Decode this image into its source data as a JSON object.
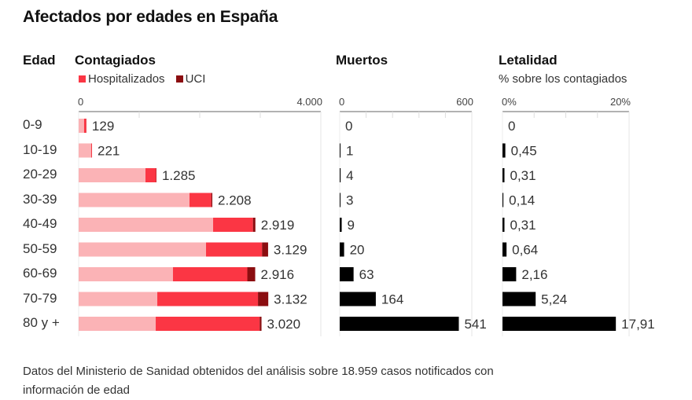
{
  "title": "Afectados por edades en España",
  "headers": {
    "edad": "Edad",
    "contagiados": "Contagiados",
    "muertos": "Muertos",
    "letalidad": "Letalidad",
    "letalidad_sub": "% sobre los contagiados"
  },
  "legend": [
    {
      "label": "Hospitalizados",
      "color": "#fb3644"
    },
    {
      "label": "UCI",
      "color": "#8b0d10"
    }
  ],
  "colors": {
    "total": "#fbb3b6",
    "hospitalizados": "#fb3644",
    "uci": "#8b0d10",
    "muertos": "#000000",
    "letalidad": "#000000"
  },
  "footnote": "Datos del Ministerio de Sanidad obtenidos del análisis sobre 18.959 casos notificados con información de edad",
  "chart_data": [
    {
      "type": "bar",
      "title": "Contagiados",
      "orientation": "horizontal",
      "stacked": true,
      "categories": [
        "0-9",
        "10-19",
        "20-29",
        "30-39",
        "40-49",
        "50-59",
        "60-69",
        "70-79",
        "80 y +"
      ],
      "series": [
        {
          "name": "Contagiados",
          "values": [
            129,
            221,
            1285,
            2208,
            2919,
            3129,
            2916,
            3132,
            3020
          ]
        },
        {
          "name": "Hospitalizados",
          "values": [
            39,
            15,
            181,
            377,
            698,
            1025,
            1358,
            1833,
            1747
          ]
        },
        {
          "name": "UCI",
          "values": [
            2,
            1,
            6,
            17,
            40,
            100,
            130,
            170,
            30
          ]
        }
      ],
      "value_labels": [
        "129",
        "221",
        "1.285",
        "2.208",
        "2.919",
        "3.129",
        "2.916",
        "3.132",
        "3.020"
      ],
      "xlim": [
        0,
        4000
      ],
      "tick_labels": [
        "0",
        "4.000"
      ],
      "ticks": [
        0,
        1000,
        2000,
        3000,
        4000
      ],
      "legend_position": "top-left"
    },
    {
      "type": "bar",
      "title": "Muertos",
      "orientation": "horizontal",
      "categories": [
        "0-9",
        "10-19",
        "20-29",
        "30-39",
        "40-49",
        "50-59",
        "60-69",
        "70-79",
        "80 y +"
      ],
      "values": [
        0,
        1,
        4,
        3,
        9,
        20,
        63,
        164,
        541
      ],
      "value_labels": [
        "0",
        "1",
        "4",
        "3",
        "9",
        "20",
        "63",
        "164",
        "541"
      ],
      "xlim": [
        0,
        600
      ],
      "tick_labels": [
        "0",
        "600"
      ],
      "ticks": [
        0,
        120,
        240,
        360,
        480,
        600
      ]
    },
    {
      "type": "bar",
      "title": "Letalidad",
      "subtitle": "% sobre los contagiados",
      "orientation": "horizontal",
      "categories": [
        "0-9",
        "10-19",
        "20-29",
        "30-39",
        "40-49",
        "50-59",
        "60-69",
        "70-79",
        "80 y +"
      ],
      "values": [
        0,
        0.45,
        0.31,
        0.14,
        0.31,
        0.64,
        2.16,
        5.24,
        17.91
      ],
      "value_labels": [
        "0",
        "0,45",
        "0,31",
        "0,14",
        "0,31",
        "0,64",
        "2,16",
        "5,24",
        "17,91"
      ],
      "xlim": [
        0,
        20
      ],
      "tick_labels": [
        "0%",
        "20%"
      ],
      "ticks": [
        0,
        5,
        10,
        15,
        20
      ]
    }
  ]
}
